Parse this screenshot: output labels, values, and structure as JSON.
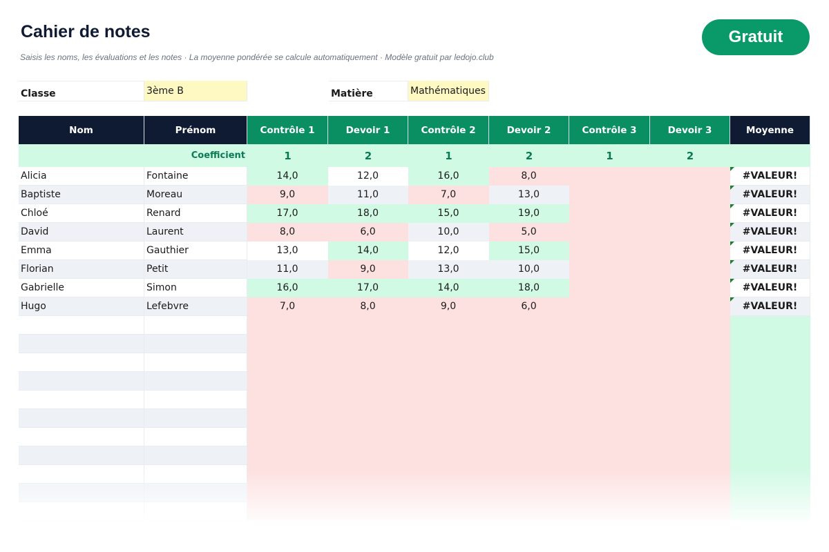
{
  "header": {
    "title": "Cahier de notes",
    "subtitle": "Saisis les noms, les évaluations et les notes · La moyenne pondérée se calcule automatiquement · Modèle gratuit par ledojo.club",
    "badge": "Gratuit"
  },
  "fields": [
    {
      "label": "Classe",
      "value": "3ème B"
    },
    {
      "label": "Matière",
      "value": "Mathématiques"
    }
  ],
  "table": {
    "columns": [
      "Nom",
      "Prénom",
      "Contrôle 1",
      "Devoir 1",
      "Contrôle 2",
      "Devoir 2",
      "Contrôle 3",
      "Devoir 3",
      "Moyenne"
    ],
    "coefficient_label": "Coefficient",
    "coefficients": [
      1,
      2,
      1,
      2,
      1,
      2
    ],
    "rows": [
      [
        "Alicia",
        "Fontaine",
        "14,0",
        "12,0",
        "16,0",
        "8,0",
        null,
        null,
        "#VALEUR!"
      ],
      [
        "Baptiste",
        "Moreau",
        "9,0",
        "11,0",
        "7,0",
        "13,0",
        null,
        null,
        "#VALEUR!"
      ],
      [
        "Chloé",
        "Renard",
        "17,0",
        "18,0",
        "15,0",
        "19,0",
        null,
        null,
        "#VALEUR!"
      ],
      [
        "David",
        "Laurent",
        "8,0",
        "6,0",
        "10,0",
        "5,0",
        null,
        null,
        "#VALEUR!"
      ],
      [
        "Emma",
        "Gauthier",
        "13,0",
        "14,0",
        "12,0",
        "15,0",
        null,
        null,
        "#VALEUR!"
      ],
      [
        "Florian",
        "Petit",
        "11,0",
        "9,0",
        "13,0",
        "10,0",
        null,
        null,
        "#VALEUR!"
      ],
      [
        "Gabrielle",
        "Simon",
        "16,0",
        "17,0",
        "14,0",
        "18,0",
        null,
        null,
        "#VALEUR!"
      ],
      [
        "Hugo",
        "Lefebvre",
        "7,0",
        "8,0",
        "9,0",
        "6,0",
        null,
        null,
        "#VALEUR!"
      ]
    ]
  }
}
